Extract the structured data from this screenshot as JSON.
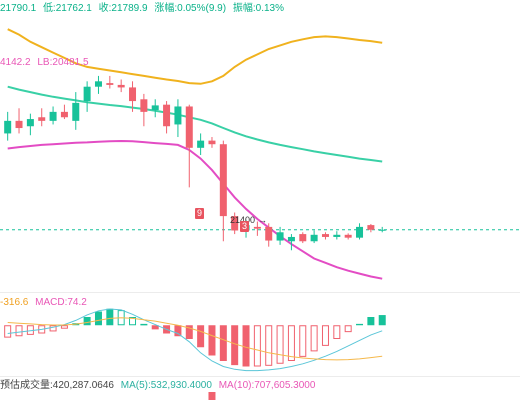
{
  "header": {
    "high": "21790.1",
    "low": "低:21762.1",
    "close": "收:21789.9",
    "change": "涨幅:0.05%(9.9)",
    "amplitude": "振幅:0.13%"
  },
  "bands": {
    "ub": "4142.2",
    "lb": "LB:20481.5"
  },
  "markers": {
    "high_marker": "9",
    "low_label": "21400",
    "low_marker_tail": "3"
  },
  "macd_panel": {
    "dea_partial": "-316.6",
    "macd": "MACD:74.2"
  },
  "volume_panel": {
    "forecast": "预估成交量:420,287.0646",
    "ma5": "MA(5):532,930.4000",
    "ma10": "MA(10):707,605.3000"
  },
  "colors": {
    "up": "#17c29a",
    "down": "#f0616e",
    "upper_band": "#f0b21e",
    "middle_band": "#39d0a6",
    "lower_band": "#e34cc4",
    "dif": "#5bc6d8",
    "dea": "#f5b84a",
    "current_price_line": "#17c29a"
  },
  "chart_data": {
    "type": "candlestick",
    "indicators": [
      "Bollinger Bands",
      "MACD",
      "Volume"
    ],
    "candles": [
      {
        "o": 21700,
        "h": 21760,
        "l": 21680,
        "c": 21735
      },
      {
        "o": 21735,
        "h": 21770,
        "l": 21700,
        "c": 21715
      },
      {
        "o": 21720,
        "h": 21755,
        "l": 21695,
        "c": 21740
      },
      {
        "o": 21745,
        "h": 21770,
        "l": 21720,
        "c": 21735
      },
      {
        "o": 21735,
        "h": 21775,
        "l": 21725,
        "c": 21760
      },
      {
        "o": 21760,
        "h": 21780,
        "l": 21740,
        "c": 21745
      },
      {
        "o": 21735,
        "h": 21815,
        "l": 21710,
        "c": 21785
      },
      {
        "o": 21790,
        "h": 21845,
        "l": 21760,
        "c": 21830
      },
      {
        "o": 21830,
        "h": 21860,
        "l": 21810,
        "c": 21845
      },
      {
        "o": 21840,
        "h": 21860,
        "l": 21825,
        "c": 21835
      },
      {
        "o": 21835,
        "h": 21850,
        "l": 21815,
        "c": 21828
      },
      {
        "o": 21828,
        "h": 21845,
        "l": 21760,
        "c": 21790
      },
      {
        "o": 21795,
        "h": 21810,
        "l": 21720,
        "c": 21760
      },
      {
        "o": 21765,
        "h": 21795,
        "l": 21745,
        "c": 21778
      },
      {
        "o": 21780,
        "h": 21790,
        "l": 21700,
        "c": 21720
      },
      {
        "o": 21725,
        "h": 21795,
        "l": 21690,
        "c": 21775
      },
      {
        "o": 21775,
        "h": 21780,
        "l": 21550,
        "c": 21660
      },
      {
        "o": 21660,
        "h": 21700,
        "l": 21640,
        "c": 21680
      },
      {
        "o": 21680,
        "h": 21690,
        "l": 21660,
        "c": 21670
      },
      {
        "o": 21670,
        "h": 21680,
        "l": 21400,
        "c": 21470
      },
      {
        "o": 21470,
        "h": 21480,
        "l": 21420,
        "c": 21430
      },
      {
        "o": 21430,
        "h": 21460,
        "l": 21410,
        "c": 21445
      },
      {
        "o": 21440,
        "h": 21455,
        "l": 21415,
        "c": 21435
      },
      {
        "o": 21440,
        "h": 21450,
        "l": 21385,
        "c": 21402
      },
      {
        "o": 21402,
        "h": 21440,
        "l": 21390,
        "c": 21425
      },
      {
        "o": 21400,
        "h": 21420,
        "l": 21375,
        "c": 21412
      },
      {
        "o": 21420,
        "h": 21425,
        "l": 21395,
        "c": 21400
      },
      {
        "o": 21400,
        "h": 21430,
        "l": 21395,
        "c": 21418
      },
      {
        "o": 21420,
        "h": 21425,
        "l": 21405,
        "c": 21412
      },
      {
        "o": 21412,
        "h": 21428,
        "l": 21405,
        "c": 21418
      },
      {
        "o": 21418,
        "h": 21422,
        "l": 21405,
        "c": 21410
      },
      {
        "o": 21410,
        "h": 21450,
        "l": 21405,
        "c": 21440
      },
      {
        "o": 21445,
        "h": 21448,
        "l": 21425,
        "c": 21432
      },
      {
        "o": 21430,
        "h": 21440,
        "l": 21425,
        "c": 21432
      }
    ],
    "upper_band": [
      21990,
      21975,
      21955,
      21940,
      21925,
      21910,
      21895,
      21885,
      21880,
      21875,
      21870,
      21865,
      21860,
      21855,
      21850,
      21846,
      21840,
      21838,
      21845,
      21860,
      21885,
      21905,
      21920,
      21935,
      21945,
      21955,
      21962,
      21968,
      21970,
      21968,
      21964,
      21960,
      21957,
      21952
    ],
    "middle_band": [
      21830,
      21822,
      21815,
      21808,
      21802,
      21797,
      21792,
      21787,
      21783,
      21779,
      21776,
      21772,
      21768,
      21763,
      21758,
      21752,
      21745,
      21738,
      21728,
      21715,
      21703,
      21692,
      21683,
      21675,
      21668,
      21662,
      21656,
      21650,
      21645,
      21640,
      21635,
      21630,
      21626,
      21622
    ],
    "lower_band": [
      21658,
      21662,
      21665,
      21668,
      21670,
      21672,
      21674,
      21675,
      21677,
      21678,
      21679,
      21678,
      21676,
      21673,
      21671,
      21668,
      21654,
      21630,
      21598,
      21560,
      21522,
      21490,
      21462,
      21438,
      21414,
      21392,
      21372,
      21352,
      21340,
      21328,
      21318,
      21310,
      21302,
      21296
    ],
    "current_price": 21432,
    "macd_hist": [
      -90,
      -80,
      -70,
      -60,
      -45,
      -25,
      15,
      60,
      100,
      120,
      110,
      60,
      10,
      -30,
      -60,
      -80,
      -100,
      -160,
      -220,
      -260,
      -290,
      -300,
      -300,
      -295,
      -280,
      -260,
      -230,
      -190,
      -150,
      -100,
      -50,
      10,
      60,
      74
    ],
    "dif": [
      -60,
      -50,
      -40,
      -30,
      -15,
      5,
      35,
      75,
      105,
      118,
      112,
      80,
      40,
      5,
      -30,
      -60,
      -120,
      -200,
      -260,
      -300,
      -320,
      -330,
      -330,
      -325,
      -315,
      -300,
      -280,
      -255,
      -225,
      -190,
      -150,
      -110,
      -70,
      -40
    ],
    "dea": [
      20,
      15,
      10,
      5,
      2,
      2,
      8,
      20,
      35,
      50,
      55,
      50,
      40,
      30,
      15,
      0,
      -20,
      -45,
      -75,
      -105,
      -135,
      -160,
      -180,
      -200,
      -215,
      -228,
      -238,
      -245,
      -250,
      -252,
      -250,
      -245,
      -235,
      -225
    ],
    "volume_visible": [
      0,
      0,
      0,
      0,
      0,
      0,
      0,
      0,
      0,
      0,
      0,
      0,
      0,
      0,
      0,
      0,
      0,
      0,
      1,
      0,
      0,
      0,
      0,
      0,
      0,
      0,
      0,
      0,
      0,
      0,
      0,
      0,
      0,
      0
    ],
    "price_range": [
      21270,
      22010
    ],
    "macd_range": [
      -340,
      140
    ]
  }
}
